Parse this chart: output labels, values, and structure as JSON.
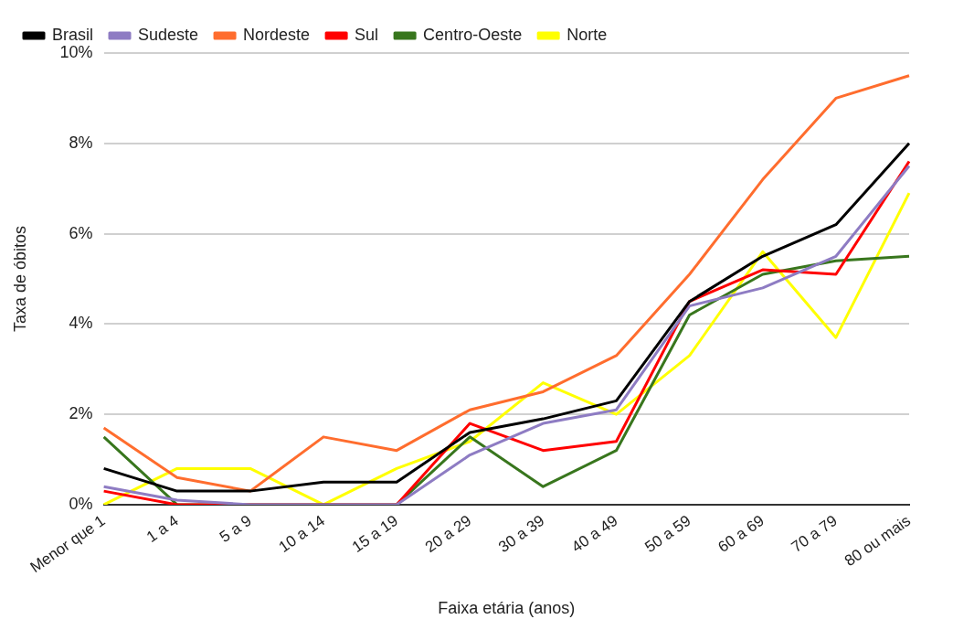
{
  "chart_data": {
    "type": "line",
    "xlabel": "Faixa etária (anos)",
    "ylabel": "Taxa de óbitos",
    "categories": [
      "Menor que 1",
      "1 a 4",
      "5 a 9",
      "10 a 14",
      "15 a 19",
      "20 a 29",
      "30 a 39",
      "40 a 49",
      "50 a 59",
      "60 a 69",
      "70 a 79",
      "80 ou mais"
    ],
    "series": [
      {
        "name": "Brasil",
        "color": "#000000",
        "values": [
          0.8,
          0.3,
          0.3,
          0.5,
          0.5,
          1.6,
          1.9,
          2.3,
          4.5,
          5.5,
          6.2,
          8.0
        ]
      },
      {
        "name": "Sudeste",
        "color": "#8e7cc3",
        "values": [
          0.4,
          0.1,
          0,
          0,
          0,
          1.1,
          1.8,
          2.1,
          4.4,
          4.8,
          5.5,
          7.5
        ]
      },
      {
        "name": "Nordeste",
        "color": "#ff6d2e",
        "values": [
          1.7,
          0.6,
          0.3,
          1.5,
          1.2,
          2.1,
          2.5,
          3.3,
          5.1,
          7.2,
          9.0,
          9.5
        ]
      },
      {
        "name": "Sul",
        "color": "#ff0000",
        "values": [
          0.3,
          0,
          0,
          0,
          0,
          1.8,
          1.2,
          1.4,
          4.5,
          5.2,
          5.1,
          7.6
        ]
      },
      {
        "name": "Centro-Oeste",
        "color": "#38761d",
        "values": [
          1.5,
          0,
          0,
          0,
          0,
          1.5,
          0.4,
          1.2,
          4.2,
          5.1,
          5.4,
          5.5
        ]
      },
      {
        "name": "Norte",
        "color": "#ffff00",
        "values": [
          0,
          0.8,
          0.8,
          0,
          0.8,
          1.4,
          2.7,
          2.0,
          3.3,
          5.6,
          3.7,
          6.9
        ]
      }
    ],
    "ylim": [
      0,
      10
    ],
    "yticks": [
      {
        "value": 0,
        "label": "0%"
      },
      {
        "value": 2,
        "label": "2%"
      },
      {
        "value": 4,
        "label": "4%"
      },
      {
        "value": 6,
        "label": "6%"
      },
      {
        "value": 8,
        "label": "8%"
      },
      {
        "value": 10,
        "label": "10%"
      }
    ],
    "grid": "y",
    "legend": "top",
    "marker": "none",
    "line_style": "solid"
  }
}
